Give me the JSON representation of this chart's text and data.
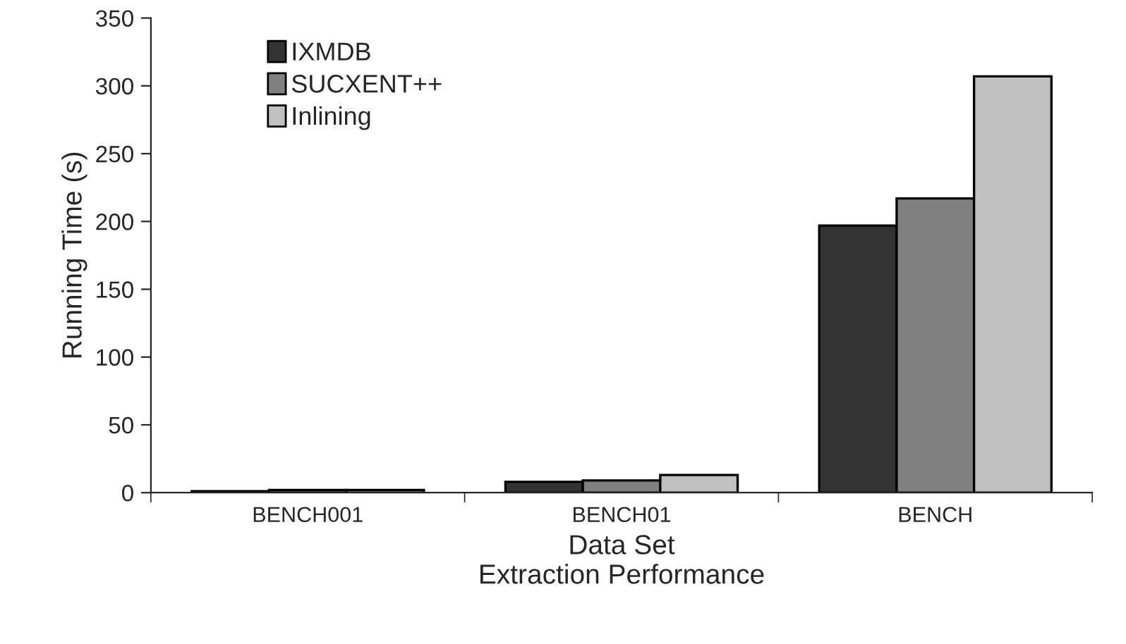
{
  "chart_data": {
    "type": "bar",
    "title": "Extraction Performance",
    "xlabel": "Data Set",
    "ylabel": "Running Time (s)",
    "categories": [
      "BENCH001",
      "BENCH01",
      "BENCH"
    ],
    "series": [
      {
        "name": "IXMDB",
        "color": "#333333",
        "values": [
          1,
          8,
          197
        ]
      },
      {
        "name": "SUCXENT++",
        "color": "#808080",
        "values": [
          2,
          9,
          217
        ]
      },
      {
        "name": "Inlining",
        "color": "#c0c0c0",
        "values": [
          2,
          13,
          307
        ]
      }
    ],
    "ylim": [
      0,
      350
    ],
    "yticks": [
      0,
      50,
      100,
      150,
      200,
      250,
      300,
      350
    ],
    "grid": false,
    "legend": "top left"
  }
}
